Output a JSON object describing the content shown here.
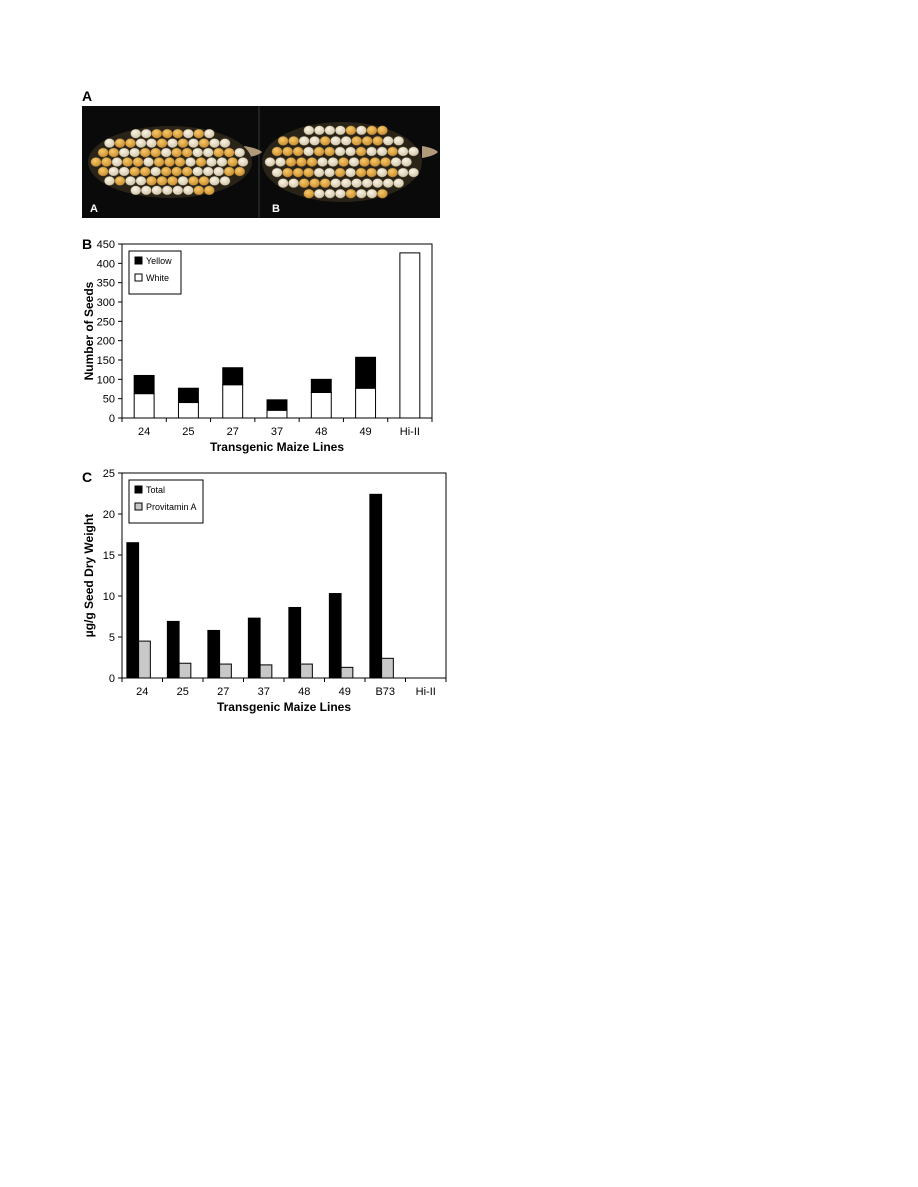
{
  "panels": {
    "a": {
      "letter": "A",
      "photo_labels": [
        "A",
        "B"
      ]
    },
    "b": {
      "letter": "B"
    },
    "c": {
      "letter": "C"
    }
  },
  "chart_data": [
    {
      "id": "b",
      "type": "bar",
      "stacked": true,
      "title": "",
      "xlabel": "Transgenic Maize Lines",
      "ylabel": "Number of Seeds",
      "categories": [
        "24",
        "25",
        "27",
        "37",
        "48",
        "49",
        "Hi-II"
      ],
      "ylim": [
        0,
        450
      ],
      "yticks": [
        0,
        50,
        100,
        150,
        200,
        250,
        300,
        350,
        400,
        450
      ],
      "series": [
        {
          "name": "White",
          "color": "#ffffff",
          "values": [
            63,
            40,
            86,
            20,
            66,
            77,
            427
          ]
        },
        {
          "name": "Yellow",
          "color": "#000000",
          "values": [
            47,
            37,
            44,
            27,
            34,
            80,
            0
          ]
        }
      ],
      "legend_order": [
        "Yellow",
        "White"
      ],
      "legend": "top-left",
      "grid": false
    },
    {
      "id": "c",
      "type": "bar",
      "stacked": false,
      "title": "",
      "xlabel": "Transgenic Maize Lines",
      "ylabel": "µg/g Seed Dry Weight",
      "categories": [
        "24",
        "25",
        "27",
        "37",
        "48",
        "49",
        "B73",
        "Hi-II"
      ],
      "ylim": [
        0,
        25
      ],
      "yticks": [
        0,
        5,
        10,
        15,
        20,
        25
      ],
      "series": [
        {
          "name": "Total",
          "color": "#000000",
          "values": [
            16.5,
            6.9,
            5.8,
            7.3,
            8.6,
            10.3,
            22.4,
            0
          ]
        },
        {
          "name": "Provitamin A",
          "color": "#c8c8c8",
          "values": [
            4.5,
            1.8,
            1.7,
            1.6,
            1.7,
            1.3,
            2.4,
            0
          ]
        }
      ],
      "legend_order": [
        "Total",
        "Provitamin A"
      ],
      "legend": "top-left",
      "grid": false
    }
  ]
}
